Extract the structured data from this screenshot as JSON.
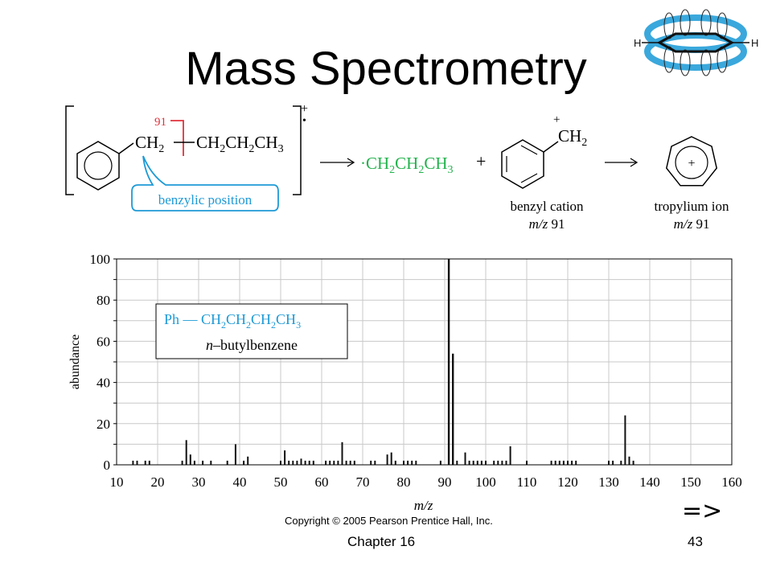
{
  "slide": {
    "title": "Mass Spectrometry",
    "footer_left": "Chapter 16",
    "footer_right": "43",
    "copyright": "Copyright © 2005 Pearson Prentice Hall, Inc.",
    "next_symbol": "=>"
  },
  "reaction": {
    "fragment_mass": "91",
    "ch2": "CH",
    "ch2_sub": "2",
    "chain": [
      "CH",
      "2",
      "CH",
      "2",
      "CH",
      "3"
    ],
    "radical_cation_charge": "+",
    "radical_dot": "•",
    "callout": "benzylic position",
    "radical_product": [
      "·CH",
      "2",
      "CH",
      "2",
      "CH",
      "3"
    ],
    "plus": "+",
    "benzyl_charge": "+",
    "benzyl_ch2": "CH",
    "benzyl_ch2_sub": "2",
    "benzyl_label": "benzyl cation",
    "benzyl_mz_italic": "m/z",
    "benzyl_mz_value": " 91",
    "tropylium_label": "tropylium ion",
    "tropylium_charge": "+",
    "tropylium_mz_italic": "m/z",
    "tropylium_mz_value": " 91"
  },
  "chart_data": {
    "type": "bar",
    "xlabel": "m/z",
    "ylabel": "abundance",
    "xlim": [
      10,
      160
    ],
    "ylim": [
      0,
      100
    ],
    "x_ticks": [
      10,
      20,
      30,
      40,
      50,
      60,
      70,
      80,
      90,
      100,
      110,
      120,
      130,
      140,
      150,
      160
    ],
    "y_ticks": [
      0,
      20,
      40,
      60,
      80,
      100
    ],
    "grid": true,
    "legend_box": {
      "formula": [
        "Ph — CH",
        "2",
        "CH",
        "2",
        "CH",
        "2",
        "CH",
        "3"
      ],
      "name_italic": "n",
      "name_rest": "–butylbenzene"
    },
    "peaks": [
      {
        "mz": 14,
        "abundance": 2
      },
      {
        "mz": 15,
        "abundance": 2
      },
      {
        "mz": 17,
        "abundance": 2
      },
      {
        "mz": 18,
        "abundance": 2
      },
      {
        "mz": 26,
        "abundance": 2
      },
      {
        "mz": 27,
        "abundance": 12
      },
      {
        "mz": 28,
        "abundance": 5
      },
      {
        "mz": 29,
        "abundance": 2
      },
      {
        "mz": 31,
        "abundance": 2
      },
      {
        "mz": 33,
        "abundance": 2
      },
      {
        "mz": 37,
        "abundance": 2
      },
      {
        "mz": 39,
        "abundance": 10
      },
      {
        "mz": 41,
        "abundance": 2
      },
      {
        "mz": 42,
        "abundance": 4
      },
      {
        "mz": 50,
        "abundance": 2
      },
      {
        "mz": 51,
        "abundance": 7
      },
      {
        "mz": 52,
        "abundance": 2
      },
      {
        "mz": 53,
        "abundance": 2
      },
      {
        "mz": 54,
        "abundance": 2
      },
      {
        "mz": 55,
        "abundance": 3
      },
      {
        "mz": 56,
        "abundance": 2
      },
      {
        "mz": 57,
        "abundance": 2
      },
      {
        "mz": 58,
        "abundance": 2
      },
      {
        "mz": 61,
        "abundance": 2
      },
      {
        "mz": 62,
        "abundance": 2
      },
      {
        "mz": 63,
        "abundance": 2
      },
      {
        "mz": 64,
        "abundance": 2
      },
      {
        "mz": 65,
        "abundance": 11
      },
      {
        "mz": 66,
        "abundance": 2
      },
      {
        "mz": 67,
        "abundance": 2
      },
      {
        "mz": 68,
        "abundance": 2
      },
      {
        "mz": 72,
        "abundance": 2
      },
      {
        "mz": 73,
        "abundance": 2
      },
      {
        "mz": 76,
        "abundance": 5
      },
      {
        "mz": 77,
        "abundance": 6
      },
      {
        "mz": 78,
        "abundance": 2
      },
      {
        "mz": 80,
        "abundance": 2
      },
      {
        "mz": 81,
        "abundance": 2
      },
      {
        "mz": 82,
        "abundance": 2
      },
      {
        "mz": 83,
        "abundance": 2
      },
      {
        "mz": 89,
        "abundance": 2
      },
      {
        "mz": 91,
        "abundance": 100
      },
      {
        "mz": 92,
        "abundance": 54
      },
      {
        "mz": 93,
        "abundance": 2
      },
      {
        "mz": 95,
        "abundance": 6
      },
      {
        "mz": 96,
        "abundance": 2
      },
      {
        "mz": 97,
        "abundance": 2
      },
      {
        "mz": 98,
        "abundance": 2
      },
      {
        "mz": 99,
        "abundance": 2
      },
      {
        "mz": 100,
        "abundance": 2
      },
      {
        "mz": 102,
        "abundance": 2
      },
      {
        "mz": 103,
        "abundance": 2
      },
      {
        "mz": 104,
        "abundance": 2
      },
      {
        "mz": 105,
        "abundance": 2
      },
      {
        "mz": 106,
        "abundance": 9
      },
      {
        "mz": 110,
        "abundance": 2
      },
      {
        "mz": 116,
        "abundance": 2
      },
      {
        "mz": 117,
        "abundance": 2
      },
      {
        "mz": 118,
        "abundance": 2
      },
      {
        "mz": 119,
        "abundance": 2
      },
      {
        "mz": 120,
        "abundance": 2
      },
      {
        "mz": 121,
        "abundance": 2
      },
      {
        "mz": 122,
        "abundance": 2
      },
      {
        "mz": 130,
        "abundance": 2
      },
      {
        "mz": 131,
        "abundance": 2
      },
      {
        "mz": 133,
        "abundance": 2
      },
      {
        "mz": 134,
        "abundance": 24
      },
      {
        "mz": 135,
        "abundance": 4
      },
      {
        "mz": 136,
        "abundance": 2
      }
    ]
  },
  "colors": {
    "accent_blue": "#1e9ad6",
    "green": "#22b24c",
    "red": "#e0313b",
    "grid": "#c8c8c8",
    "orbital_blue": "#3aa8dc"
  }
}
